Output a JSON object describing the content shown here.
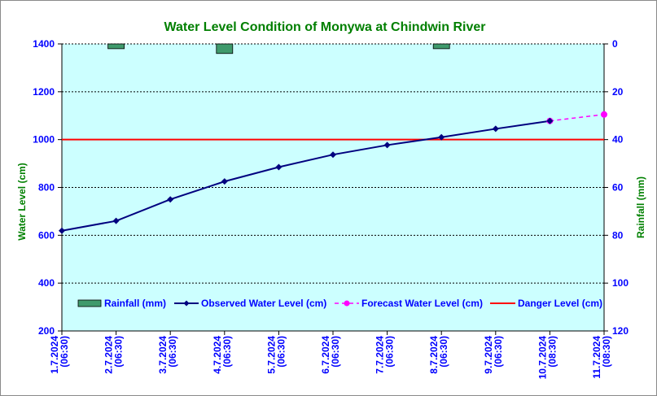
{
  "chart_data": {
    "type": "line",
    "title": "Water Level Condition of Monywa at Chindwin River",
    "ylabel": "Water Level (cm)",
    "y2label": "Rainfall (mm)",
    "ylim": [
      200,
      1400
    ],
    "y2lim": [
      0,
      120
    ],
    "y2_inverted": true,
    "yticks": [
      "200",
      "400",
      "600",
      "800",
      "1000",
      "1200",
      "1400"
    ],
    "y2ticks": [
      "0",
      "20",
      "40",
      "60",
      "80",
      "100",
      "120"
    ],
    "categories": [
      [
        "1.7.2024",
        "(06:30)"
      ],
      [
        "2.7.2024",
        "(06:30)"
      ],
      [
        "3.7.2024",
        "(06:30)"
      ],
      [
        "4.7.2024",
        "(06:30)"
      ],
      [
        "5.7.2024",
        "(06:30)"
      ],
      [
        "6.7.2024",
        "(06:30)"
      ],
      [
        "7.7.2024",
        "(06:30)"
      ],
      [
        "8.7.2024",
        "(06:30)"
      ],
      [
        "9.7.2024",
        "(06:30)"
      ],
      [
        "10.7.2024",
        "(08:30)"
      ],
      [
        "11.7.2024",
        "(08:30)"
      ]
    ],
    "series": [
      {
        "name": "Rainfall (mm)",
        "kind": "bar",
        "axis": "right",
        "color": "#3f9a6c",
        "values": [
          null,
          2,
          null,
          4,
          null,
          null,
          null,
          2,
          null,
          null,
          null
        ]
      },
      {
        "name": "Observed Water Level (cm)",
        "kind": "line",
        "axis": "left",
        "color": "#00007f",
        "values": [
          619,
          660,
          750,
          825,
          885,
          937,
          977,
          1010,
          1045,
          1078,
          null
        ]
      },
      {
        "name": "Forecast Water Level (cm)",
        "kind": "dashed-line",
        "axis": "left",
        "color": "#ff00ff",
        "values": [
          null,
          null,
          null,
          null,
          null,
          null,
          null,
          null,
          null,
          1078,
          1105
        ]
      },
      {
        "name": "Danger Level (cm)",
        "kind": "hline",
        "axis": "left",
        "color": "#ff0000",
        "value": 1000
      }
    ],
    "grid": true,
    "legend_position": "bottom-inside",
    "colors": {
      "plot_background": "#ccffff",
      "title": "#007f00",
      "axis_text": "#0000ff",
      "axis_label": "#008000"
    }
  }
}
